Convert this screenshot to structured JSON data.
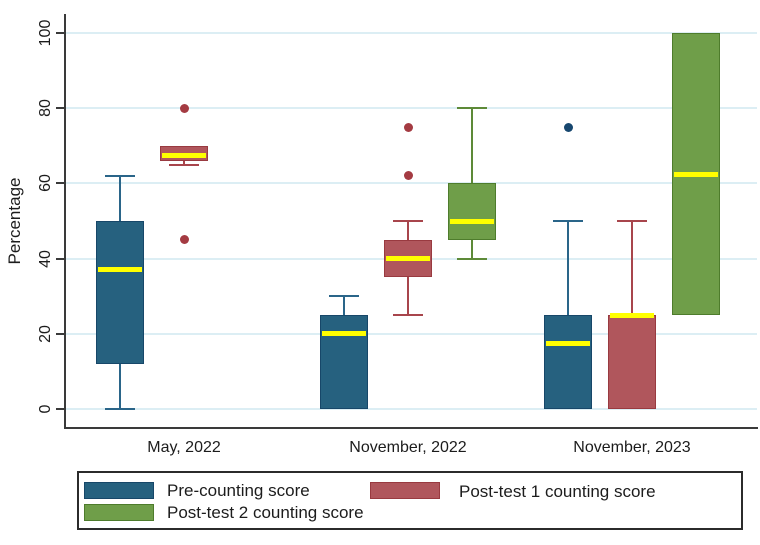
{
  "figure": {
    "background": "#FFFFFF"
  },
  "y_axis": {
    "label": "Percentage",
    "ticks": [
      0,
      20,
      40,
      60,
      80,
      100
    ]
  },
  "x_axis": {
    "categories": [
      "May, 2022",
      "November, 2022",
      "November, 2023"
    ]
  },
  "legend": {
    "position": "bottom",
    "items": [
      {
        "label": "Pre-counting score"
      },
      {
        "label": "Post-test 1 counting score"
      },
      {
        "label": "Post-test 2 counting score"
      }
    ]
  },
  "chart_data": {
    "type": "boxplot",
    "title": "",
    "xlabel": "",
    "ylabel": "Percentage",
    "ylim": [
      0,
      100
    ],
    "yticks": [
      0,
      20,
      40,
      60,
      80,
      100
    ],
    "grid": "on",
    "legend_position": "bottom",
    "categories": [
      "May, 2022",
      "November, 2022",
      "November, 2023"
    ],
    "style": {
      "median": "#FFFF00",
      "grid": "#DCEEF4",
      "axis": "#3A3A3A",
      "text": "#1C1C1C",
      "background": "#FFFFFF"
    },
    "series": [
      {
        "name": "Pre-counting score",
        "fill": "#26617F",
        "border": "#174769",
        "line": "#2A6589",
        "marker": "#17476F",
        "boxes": [
          {
            "min": 0,
            "q1": 12,
            "median": 37,
            "q3": 50,
            "max": 62,
            "outliers": []
          },
          {
            "min": 0,
            "q1": 0,
            "median": 20,
            "q3": 25,
            "max": 30,
            "outliers": []
          },
          {
            "min": 0,
            "q1": 0,
            "median": 17.5,
            "q3": 25,
            "max": 50,
            "outliers": [
              75
            ]
          }
        ]
      },
      {
        "name": "Post-test 1 counting score",
        "fill": "#B0565C",
        "border": "#993A40",
        "line": "#A8454C",
        "marker": "#A43B42",
        "boxes": [
          {
            "min": 65,
            "q1": 66,
            "median": 67.5,
            "q3": 70,
            "max": 70,
            "outliers": [
              80,
              45
            ]
          },
          {
            "min": 25,
            "q1": 35,
            "median": 40,
            "q3": 45,
            "max": 50,
            "outliers": [
              62,
              75
            ]
          },
          {
            "min": 0,
            "q1": 0,
            "median": 25,
            "q3": 25,
            "max": 50,
            "outliers": []
          }
        ]
      },
      {
        "name": "Post-test 2 counting score",
        "fill": "#6F9E49",
        "border": "#4E7C2C",
        "line": "#5D8A38",
        "marker": "#5D8A38",
        "boxes": [
          null,
          {
            "min": 40,
            "q1": 45,
            "median": 50,
            "q3": 60,
            "max": 80,
            "outliers": []
          },
          {
            "min": 25,
            "q1": 25,
            "median": 62.5,
            "q3": 100,
            "max": 100,
            "outliers": []
          }
        ]
      }
    ]
  }
}
